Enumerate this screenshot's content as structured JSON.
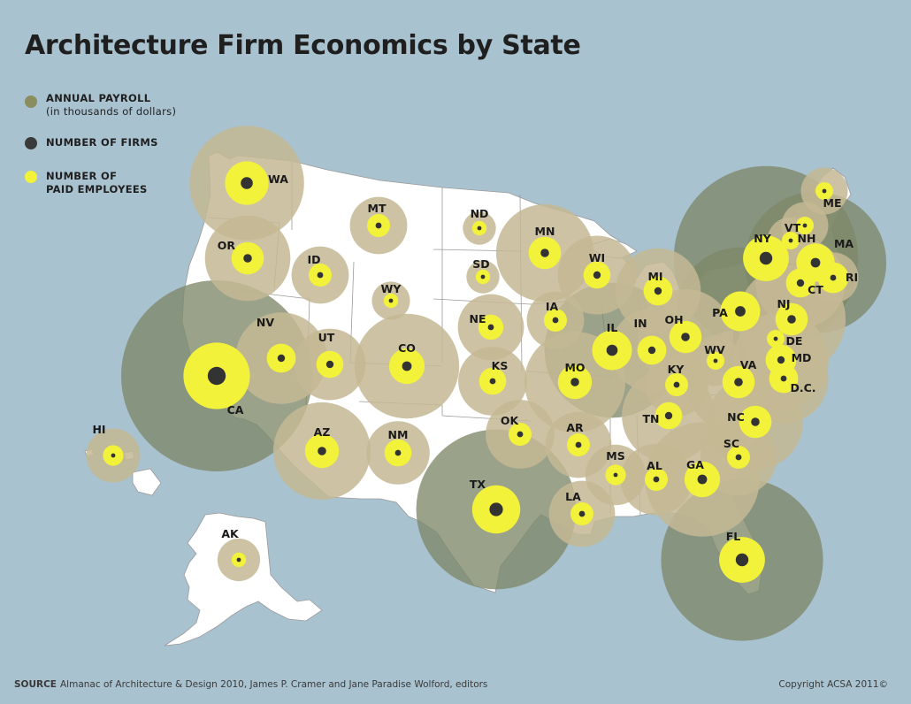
{
  "title": "Architecture Firm Economics by State",
  "legend": {
    "payroll": {
      "label": "ANNUAL PAYROLL",
      "sublabel": "(in thousands of dollars)",
      "color": "#8a8d5e"
    },
    "firms": {
      "label": "NUMBER OF FIRMS",
      "color": "#3a3a3a"
    },
    "employees": {
      "label_line1": "NUMBER OF",
      "label_line2": "PAID EMPLOYEES",
      "color": "#f2f23a"
    }
  },
  "colors": {
    "water": "#a9c2cf",
    "land": "#ffffff",
    "payroll_small": "#c4b994",
    "payroll_large": "#7e8869",
    "employees": "#f2f23a",
    "firms": "#333333"
  },
  "states": [
    {
      "code": "WA",
      "payroll": 0.36,
      "employees": 0.18,
      "firms": 0.08
    },
    {
      "code": "OR",
      "payroll": 0.2,
      "employees": 0.1,
      "firms": 0.04
    },
    {
      "code": "CA",
      "payroll": 1.0,
      "employees": 0.42,
      "firms": 0.18
    },
    {
      "code": "NV",
      "payroll": 0.23,
      "employees": 0.08,
      "firms": 0.03
    },
    {
      "code": "ID",
      "payroll": 0.09,
      "employees": 0.05,
      "firms": 0.02
    },
    {
      "code": "MT",
      "payroll": 0.09,
      "employees": 0.05,
      "firms": 0.02
    },
    {
      "code": "WY",
      "payroll": 0.04,
      "employees": 0.02,
      "firms": 0.01
    },
    {
      "code": "UT",
      "payroll": 0.14,
      "employees": 0.07,
      "firms": 0.03
    },
    {
      "code": "CO",
      "payroll": 0.3,
      "employees": 0.12,
      "firms": 0.05
    },
    {
      "code": "AZ",
      "payroll": 0.26,
      "employees": 0.11,
      "firms": 0.04
    },
    {
      "code": "NM",
      "payroll": 0.11,
      "employees": 0.07,
      "firms": 0.02
    },
    {
      "code": "ND",
      "payroll": 0.03,
      "employees": 0.02,
      "firms": 0.01
    },
    {
      "code": "SD",
      "payroll": 0.03,
      "employees": 0.02,
      "firms": 0.01
    },
    {
      "code": "NE",
      "payroll": 0.12,
      "employees": 0.06,
      "firms": 0.02
    },
    {
      "code": "KS",
      "payroll": 0.13,
      "employees": 0.07,
      "firms": 0.02
    },
    {
      "code": "OK",
      "payroll": 0.13,
      "employees": 0.05,
      "firms": 0.02
    },
    {
      "code": "TX",
      "payroll": 0.7,
      "employees": 0.22,
      "firms": 0.1
    },
    {
      "code": "MN",
      "payroll": 0.26,
      "employees": 0.1,
      "firms": 0.04
    },
    {
      "code": "IA",
      "payroll": 0.09,
      "employees": 0.05,
      "firms": 0.02
    },
    {
      "code": "MO",
      "payroll": 0.28,
      "employees": 0.11,
      "firms": 0.04
    },
    {
      "code": "AR",
      "payroll": 0.12,
      "employees": 0.05,
      "firms": 0.02
    },
    {
      "code": "LA",
      "payroll": 0.12,
      "employees": 0.05,
      "firms": 0.02
    },
    {
      "code": "WI",
      "payroll": 0.17,
      "employees": 0.07,
      "firms": 0.03
    },
    {
      "code": "IL",
      "payroll": 0.5,
      "employees": 0.15,
      "firms": 0.07
    },
    {
      "code": "MI",
      "payroll": 0.2,
      "employees": 0.08,
      "firms": 0.03
    },
    {
      "code": "IN",
      "payroll": 0.19,
      "employees": 0.08,
      "firms": 0.03
    },
    {
      "code": "OH",
      "payroll": 0.25,
      "employees": 0.1,
      "firms": 0.04
    },
    {
      "code": "KY",
      "payroll": 0.11,
      "employees": 0.05,
      "firms": 0.02
    },
    {
      "code": "TN",
      "payroll": 0.24,
      "employees": 0.07,
      "firms": 0.03
    },
    {
      "code": "MS",
      "payroll": 0.1,
      "employees": 0.04,
      "firms": 0.01
    },
    {
      "code": "AL",
      "payroll": 0.14,
      "employees": 0.05,
      "firms": 0.02
    },
    {
      "code": "GA",
      "payroll": 0.36,
      "employees": 0.12,
      "firms": 0.05
    },
    {
      "code": "FL",
      "payroll": 0.72,
      "employees": 0.2,
      "firms": 0.09
    },
    {
      "code": "SC",
      "payroll": 0.16,
      "employees": 0.05,
      "firms": 0.02
    },
    {
      "code": "NC",
      "payroll": 0.25,
      "employees": 0.1,
      "firms": 0.04
    },
    {
      "code": "VA",
      "payroll": 0.3,
      "employees": 0.1,
      "firms": 0.04
    },
    {
      "code": "WV",
      "payroll": 0.07,
      "employees": 0.03,
      "firms": 0.01
    },
    {
      "code": "PA",
      "payroll": 0.45,
      "employees": 0.15,
      "firms": 0.06
    },
    {
      "code": "NY",
      "payroll": 0.93,
      "employees": 0.2,
      "firms": 0.09
    },
    {
      "code": "NJ",
      "payroll": 0.32,
      "employees": 0.1,
      "firms": 0.04
    },
    {
      "code": "DE",
      "payroll": 0.06,
      "employees": 0.03,
      "firms": 0.01
    },
    {
      "code": "MD",
      "payroll": 0.25,
      "employees": 0.09,
      "firms": 0.03
    },
    {
      "code": "D.C.",
      "payroll": 0.22,
      "employees": 0.08,
      "firms": 0.02
    },
    {
      "code": "CT",
      "payroll": 0.22,
      "employees": 0.08,
      "firms": 0.03
    },
    {
      "code": "RI",
      "payroll": 0.07,
      "employees": 0.09,
      "firms": 0.02
    },
    {
      "code": "MA",
      "payroll": 0.55,
      "employees": 0.14,
      "firms": 0.05
    },
    {
      "code": "VT",
      "payroll": 0.06,
      "employees": 0.03,
      "firms": 0.01
    },
    {
      "code": "NH",
      "payroll": 0.06,
      "employees": 0.03,
      "firms": 0.01
    },
    {
      "code": "ME",
      "payroll": 0.06,
      "employees": 0.03,
      "firms": 0.01
    },
    {
      "code": "AK",
      "payroll": 0.05,
      "employees": 0.02,
      "firms": 0.01
    },
    {
      "code": "HI",
      "payroll": 0.08,
      "employees": 0.04,
      "firms": 0.01
    }
  ],
  "footer": {
    "source_label": "SOURCE",
    "source_text": "Almanac of Architecture & Design 2010, James P. Cramer and Jane Paradise Wolford, editors",
    "copyright": "Copyright ACSA 2011©"
  }
}
